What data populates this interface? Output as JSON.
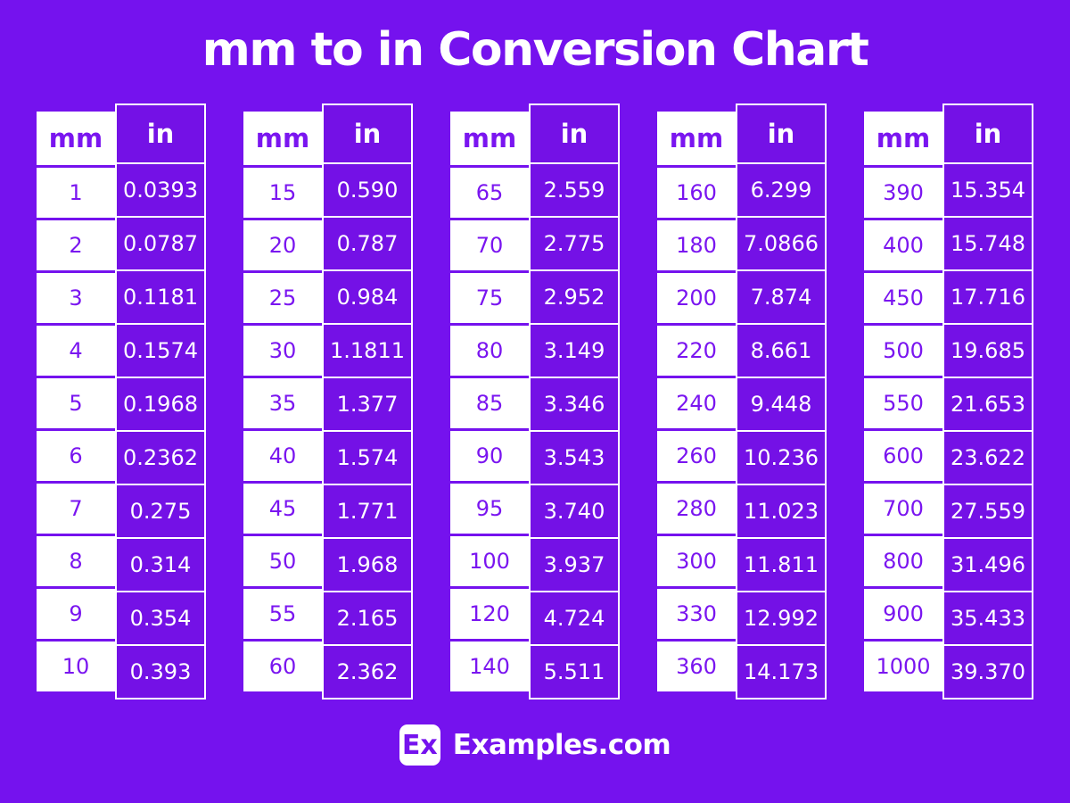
{
  "header": {
    "title": "mm to in Conversion Chart"
  },
  "table_headers": {
    "mm": "mm",
    "in": "in"
  },
  "chart_data": {
    "type": "table",
    "title": "mm to in Conversion Chart",
    "columns": [
      "mm",
      "in"
    ],
    "layout": "5 side-by-side two-column tables, header row on each",
    "tables": [
      {
        "rows": [
          [
            "1",
            "0.0393"
          ],
          [
            "2",
            "0.0787"
          ],
          [
            "3",
            "0.1181"
          ],
          [
            "4",
            "0.1574"
          ],
          [
            "5",
            "0.1968"
          ],
          [
            "6",
            "0.2362"
          ],
          [
            "7",
            "0.275"
          ],
          [
            "8",
            "0.314"
          ],
          [
            "9",
            "0.354"
          ],
          [
            "10",
            "0.393"
          ]
        ]
      },
      {
        "rows": [
          [
            "15",
            "0.590"
          ],
          [
            "20",
            "0.787"
          ],
          [
            "25",
            "0.984"
          ],
          [
            "30",
            "1.1811"
          ],
          [
            "35",
            "1.377"
          ],
          [
            "40",
            "1.574"
          ],
          [
            "45",
            "1.771"
          ],
          [
            "50",
            "1.968"
          ],
          [
            "55",
            "2.165"
          ],
          [
            "60",
            "2.362"
          ]
        ]
      },
      {
        "rows": [
          [
            "65",
            "2.559"
          ],
          [
            "70",
            "2.775"
          ],
          [
            "75",
            "2.952"
          ],
          [
            "80",
            "3.149"
          ],
          [
            "85",
            "3.346"
          ],
          [
            "90",
            "3.543"
          ],
          [
            "95",
            "3.740"
          ],
          [
            "100",
            "3.937"
          ],
          [
            "120",
            "4.724"
          ],
          [
            "140",
            "5.511"
          ]
        ]
      },
      {
        "rows": [
          [
            "160",
            "6.299"
          ],
          [
            "180",
            "7.0866"
          ],
          [
            "200",
            "7.874"
          ],
          [
            "220",
            "8.661"
          ],
          [
            "240",
            "9.448"
          ],
          [
            "260",
            "10.236"
          ],
          [
            "280",
            "11.023"
          ],
          [
            "300",
            "11.811"
          ],
          [
            "330",
            "12.992"
          ],
          [
            "360",
            "14.173"
          ]
        ]
      },
      {
        "rows": [
          [
            "390",
            "15.354"
          ],
          [
            "400",
            "15.748"
          ],
          [
            "450",
            "17.716"
          ],
          [
            "500",
            "19.685"
          ],
          [
            "550",
            "21.653"
          ],
          [
            "600",
            "23.622"
          ],
          [
            "700",
            "27.559"
          ],
          [
            "800",
            "31.496"
          ],
          [
            "900",
            "35.433"
          ],
          [
            "1000",
            "39.370"
          ]
        ]
      }
    ]
  },
  "footer": {
    "logo_text": "Ex",
    "brand": "Examples.com"
  },
  "colors": {
    "background": "#7512EE",
    "cell_purple": "#7411E6",
    "text_purple": "#7A15F0",
    "white": "#FFFFFF"
  }
}
